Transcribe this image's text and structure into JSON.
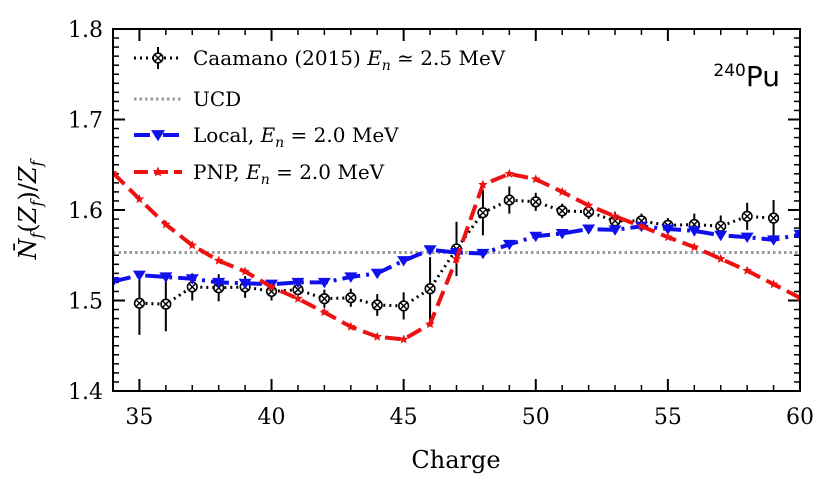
{
  "chart_data": {
    "type": "line",
    "xlabel": "Charge",
    "ylabel": "N̄_f(Z_f)/Z_f",
    "xlim": [
      34,
      60
    ],
    "ylim": [
      1.4,
      1.8
    ],
    "xticks": [
      35,
      40,
      45,
      50,
      55,
      60
    ],
    "yticks": [
      1.4,
      1.5,
      1.6,
      1.7,
      1.8
    ],
    "xtick_labels": [
      "35",
      "40",
      "45",
      "50",
      "55",
      "60"
    ],
    "ytick_labels": [
      "1.4",
      "1.5",
      "1.6",
      "1.7",
      "1.8"
    ],
    "annotation": {
      "mass": "240",
      "element": "Pu"
    },
    "legend_position": "top-left",
    "series": [
      {
        "name": "Caamano (2015)",
        "legend_math": "E_n ≃ 2.5 MeV",
        "style": "dotted-errorbar",
        "color": "#000000",
        "x": [
          35,
          36,
          37,
          38,
          39,
          40,
          41,
          42,
          43,
          44,
          45,
          46,
          47,
          48,
          49,
          50,
          51,
          52,
          53,
          54,
          55,
          56,
          57,
          58,
          59
        ],
        "values": [
          1.497,
          1.496,
          1.515,
          1.514,
          1.515,
          1.51,
          1.512,
          1.502,
          1.503,
          1.495,
          1.494,
          1.513,
          1.557,
          1.597,
          1.611,
          1.609,
          1.599,
          1.598,
          1.588,
          1.588,
          1.583,
          1.584,
          1.582,
          1.593,
          1.591
        ],
        "errors": [
          0.035,
          0.03,
          0.015,
          0.015,
          0.012,
          0.01,
          0.012,
          0.01,
          0.01,
          0.012,
          0.015,
          0.035,
          0.03,
          0.025,
          0.015,
          0.01,
          0.008,
          0.008,
          0.01,
          0.008,
          0.008,
          0.012,
          0.012,
          0.015,
          0.02
        ]
      },
      {
        "name": "UCD",
        "legend_math": "",
        "style": "dotted",
        "color": "#999999",
        "x": [
          34,
          60
        ],
        "values": [
          1.553,
          1.553
        ]
      },
      {
        "name": "Local, ",
        "legend_math": "E_n = 2.0 MeV",
        "style": "dashdot-triangle",
        "color": "#1010ee",
        "x": [
          34,
          35,
          36,
          37,
          38,
          39,
          40,
          41,
          42,
          43,
          44,
          45,
          46,
          47,
          48,
          49,
          50,
          51,
          52,
          53,
          54,
          55,
          56,
          57,
          58,
          59,
          60
        ],
        "values": [
          1.521,
          1.528,
          1.526,
          1.524,
          1.52,
          1.519,
          1.518,
          1.52,
          1.52,
          1.526,
          1.53,
          1.544,
          1.556,
          1.553,
          1.552,
          1.562,
          1.571,
          1.574,
          1.579,
          1.578,
          1.582,
          1.579,
          1.577,
          1.572,
          1.57,
          1.567,
          1.573
        ]
      },
      {
        "name": "PNP, ",
        "legend_math": "E_n = 2.0 MeV",
        "style": "dashed-star",
        "color": "#ee1111",
        "x": [
          34,
          35,
          36,
          37,
          38,
          39,
          40,
          41,
          42,
          43,
          44,
          45,
          46,
          47,
          48,
          49,
          50,
          51,
          52,
          53,
          54,
          55,
          56,
          57,
          58,
          59,
          60
        ],
        "values": [
          1.641,
          1.612,
          1.584,
          1.561,
          1.544,
          1.532,
          1.515,
          1.502,
          1.487,
          1.471,
          1.46,
          1.457,
          1.474,
          1.546,
          1.628,
          1.64,
          1.634,
          1.62,
          1.605,
          1.593,
          1.582,
          1.57,
          1.559,
          1.546,
          1.533,
          1.518,
          1.503
        ]
      }
    ]
  }
}
